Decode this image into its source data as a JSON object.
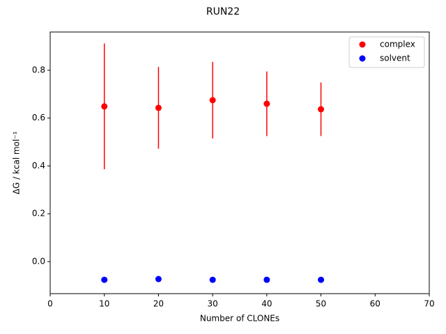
{
  "chart_data": {
    "type": "scatter",
    "title": "RUN22",
    "x_label": "Number of CLONEs",
    "y_label": "ΔG / kcal mol⁻¹",
    "series": [
      {
        "name": "complex",
        "color": "#ff0000",
        "x": [
          10,
          20,
          30,
          40,
          50
        ],
        "values": [
          0.649,
          0.643,
          0.675,
          0.66,
          0.637
        ],
        "errors": [
          0.263,
          0.171,
          0.16,
          0.135,
          0.112
        ]
      },
      {
        "name": "solvent",
        "color": "#0000ff",
        "x": [
          10,
          20,
          30,
          40,
          50
        ],
        "values": [
          -0.076,
          -0.073,
          -0.076,
          -0.076,
          -0.076
        ]
      }
    ],
    "xlim": [
      0,
      70
    ],
    "xticks": [
      0,
      10,
      20,
      30,
      40,
      50,
      60,
      70
    ],
    "ylim": [
      -0.134,
      0.96
    ],
    "yticks": [
      {
        "value": 0,
        "label": "0.0"
      },
      0.2,
      0.4,
      0.6,
      0.8
    ],
    "legend": "upper right"
  }
}
